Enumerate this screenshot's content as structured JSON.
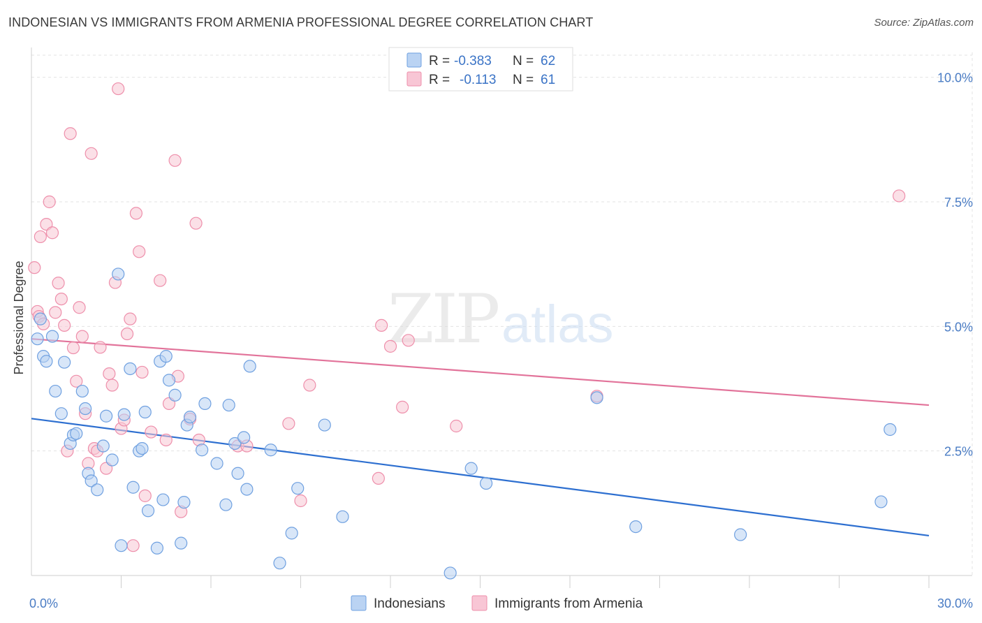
{
  "header": {
    "title": "INDONESIAN VS IMMIGRANTS FROM ARMENIA PROFESSIONAL DEGREE CORRELATION CHART",
    "source": "Source: ZipAtlas.com"
  },
  "watermark": {
    "zip": "ZIP",
    "atlas": "atlas"
  },
  "legend": {
    "rows": [
      {
        "r_label": "R =",
        "r_value": "-0.383",
        "n_label": "N =",
        "n_value": "62",
        "color": "#a9c8f0"
      },
      {
        "r_label": "R =",
        "r_value": "-0.113",
        "n_label": "N =",
        "n_value": "61",
        "color": "#f6b8cb"
      }
    ]
  },
  "chart_data": {
    "type": "scatter",
    "ylabel": "Professional Degree",
    "xlim": [
      0,
      30
    ],
    "ylim": [
      0,
      10.5
    ],
    "x_tick_labels": [
      "0.0%",
      "30.0%"
    ],
    "y_ticks": [
      {
        "value": 2.5,
        "label": "2.5%"
      },
      {
        "value": 5.0,
        "label": "5.0%"
      },
      {
        "value": 7.5,
        "label": "7.5%"
      },
      {
        "value": 10.0,
        "label": "10.0%"
      }
    ],
    "grid": true,
    "series": [
      {
        "name": "Indonesians",
        "color": "#6fa0e0",
        "fill": "#b8d2f3",
        "line_color": "#2d6fd0",
        "trend": {
          "x": [
            0,
            30
          ],
          "y": [
            3.15,
            0.8
          ]
        },
        "points": [
          [
            0.2,
            4.75
          ],
          [
            0.3,
            5.15
          ],
          [
            0.4,
            4.4
          ],
          [
            0.5,
            4.3
          ],
          [
            0.7,
            4.8
          ],
          [
            0.8,
            3.7
          ],
          [
            1.0,
            3.25
          ],
          [
            1.1,
            4.28
          ],
          [
            1.3,
            2.65
          ],
          [
            1.4,
            2.82
          ],
          [
            1.5,
            2.85
          ],
          [
            1.7,
            3.7
          ],
          [
            1.8,
            3.35
          ],
          [
            1.9,
            2.05
          ],
          [
            2.0,
            1.9
          ],
          [
            2.2,
            1.72
          ],
          [
            2.4,
            2.6
          ],
          [
            2.5,
            3.2
          ],
          [
            2.7,
            2.32
          ],
          [
            2.9,
            6.05
          ],
          [
            3.0,
            0.6
          ],
          [
            3.1,
            3.23
          ],
          [
            3.3,
            4.15
          ],
          [
            3.4,
            1.77
          ],
          [
            3.6,
            2.5
          ],
          [
            3.7,
            2.55
          ],
          [
            3.8,
            3.28
          ],
          [
            3.9,
            1.3
          ],
          [
            4.2,
            0.55
          ],
          [
            4.3,
            4.3
          ],
          [
            4.4,
            1.52
          ],
          [
            4.5,
            4.4
          ],
          [
            4.6,
            3.92
          ],
          [
            4.8,
            3.62
          ],
          [
            5.0,
            0.65
          ],
          [
            5.1,
            1.47
          ],
          [
            5.2,
            3.02
          ],
          [
            5.3,
            3.18
          ],
          [
            5.7,
            2.52
          ],
          [
            5.8,
            3.45
          ],
          [
            6.2,
            2.25
          ],
          [
            6.5,
            1.42
          ],
          [
            6.6,
            3.42
          ],
          [
            6.8,
            2.65
          ],
          [
            6.9,
            2.05
          ],
          [
            7.1,
            2.77
          ],
          [
            7.2,
            1.73
          ],
          [
            7.3,
            4.2
          ],
          [
            8.0,
            2.52
          ],
          [
            8.3,
            0.25
          ],
          [
            8.7,
            0.85
          ],
          [
            8.9,
            1.75
          ],
          [
            9.8,
            3.02
          ],
          [
            10.4,
            1.18
          ],
          [
            14.0,
            0.05
          ],
          [
            14.7,
            2.15
          ],
          [
            15.2,
            1.85
          ],
          [
            18.9,
            3.57
          ],
          [
            20.2,
            0.98
          ],
          [
            23.7,
            0.82
          ],
          [
            28.4,
            1.48
          ],
          [
            28.7,
            2.93
          ]
        ]
      },
      {
        "name": "Immigrants from Armenia",
        "color": "#ee8fab",
        "fill": "#f8c6d4",
        "line_color": "#e2739a",
        "trend": {
          "x": [
            0,
            30
          ],
          "y": [
            4.75,
            3.42
          ]
        },
        "points": [
          [
            0.1,
            6.18
          ],
          [
            0.2,
            5.3
          ],
          [
            0.25,
            5.2
          ],
          [
            0.3,
            6.8
          ],
          [
            0.4,
            5.05
          ],
          [
            0.5,
            7.05
          ],
          [
            0.6,
            7.5
          ],
          [
            0.7,
            6.88
          ],
          [
            0.8,
            5.28
          ],
          [
            0.9,
            5.87
          ],
          [
            1.0,
            5.55
          ],
          [
            1.1,
            5.02
          ],
          [
            1.2,
            2.5
          ],
          [
            1.3,
            8.87
          ],
          [
            1.4,
            4.57
          ],
          [
            1.5,
            3.9
          ],
          [
            1.6,
            5.38
          ],
          [
            1.7,
            4.8
          ],
          [
            1.8,
            3.25
          ],
          [
            1.9,
            2.25
          ],
          [
            2.0,
            8.47
          ],
          [
            2.1,
            2.55
          ],
          [
            2.2,
            2.5
          ],
          [
            2.3,
            4.58
          ],
          [
            2.5,
            2.15
          ],
          [
            2.6,
            4.05
          ],
          [
            2.7,
            3.82
          ],
          [
            2.8,
            5.88
          ],
          [
            2.9,
            9.77
          ],
          [
            3.0,
            2.95
          ],
          [
            3.1,
            3.12
          ],
          [
            3.2,
            4.85
          ],
          [
            3.3,
            5.15
          ],
          [
            3.4,
            0.6
          ],
          [
            3.5,
            7.27
          ],
          [
            3.6,
            6.5
          ],
          [
            3.7,
            4.08
          ],
          [
            3.8,
            1.6
          ],
          [
            4.0,
            2.88
          ],
          [
            4.3,
            5.92
          ],
          [
            4.5,
            2.72
          ],
          [
            4.6,
            3.45
          ],
          [
            4.8,
            8.33
          ],
          [
            4.9,
            4.0
          ],
          [
            5.0,
            1.28
          ],
          [
            5.3,
            3.14
          ],
          [
            5.5,
            7.07
          ],
          [
            5.6,
            2.72
          ],
          [
            6.9,
            2.6
          ],
          [
            7.2,
            2.6
          ],
          [
            8.6,
            3.05
          ],
          [
            9.0,
            1.5
          ],
          [
            9.3,
            3.82
          ],
          [
            11.6,
            1.95
          ],
          [
            11.7,
            5.02
          ],
          [
            12.0,
            4.6
          ],
          [
            12.4,
            3.38
          ],
          [
            12.6,
            4.72
          ],
          [
            14.2,
            3.0
          ],
          [
            18.9,
            3.6
          ],
          [
            29.0,
            7.62
          ]
        ]
      }
    ]
  }
}
